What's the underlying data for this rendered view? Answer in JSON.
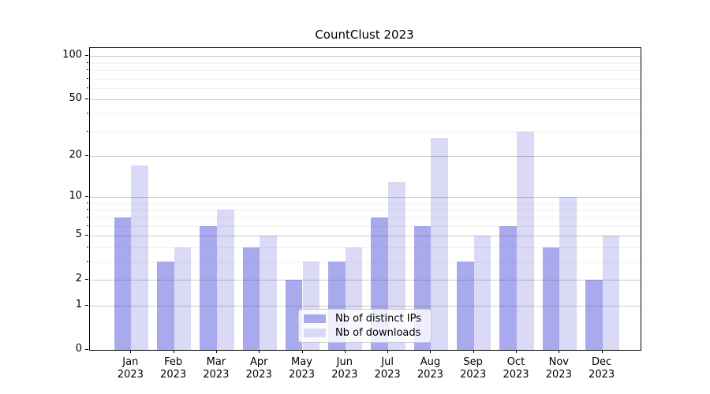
{
  "chart_data": {
    "type": "bar",
    "title": "CountClust 2023",
    "months": [
      "Jan",
      "Feb",
      "Mar",
      "Apr",
      "May",
      "Jun",
      "Jul",
      "Aug",
      "Sep",
      "Oct",
      "Nov",
      "Dec"
    ],
    "year_label": "2023",
    "series": [
      {
        "name": "Nb of distinct IPs",
        "color": "#a9a9ee",
        "values": [
          7,
          3,
          6,
          4,
          2,
          3,
          7,
          6,
          3,
          6,
          4,
          2
        ]
      },
      {
        "name": "Nb of downloads",
        "color": "#dadaf7",
        "values": [
          17,
          4,
          8,
          5,
          3,
          4,
          13,
          27,
          5,
          30,
          10,
          5
        ]
      }
    ],
    "y_scale": "log1p",
    "y_ticks_major": [
      0,
      1,
      2,
      5,
      10,
      20,
      50,
      100
    ],
    "y_ticks_minor": [
      3,
      4,
      6,
      7,
      8,
      9,
      30,
      40,
      60,
      70,
      80,
      90
    ],
    "y_range": [
      0,
      114
    ],
    "grid": "horizontal",
    "legend_position": "lower center",
    "xlabel": "",
    "ylabel": ""
  }
}
